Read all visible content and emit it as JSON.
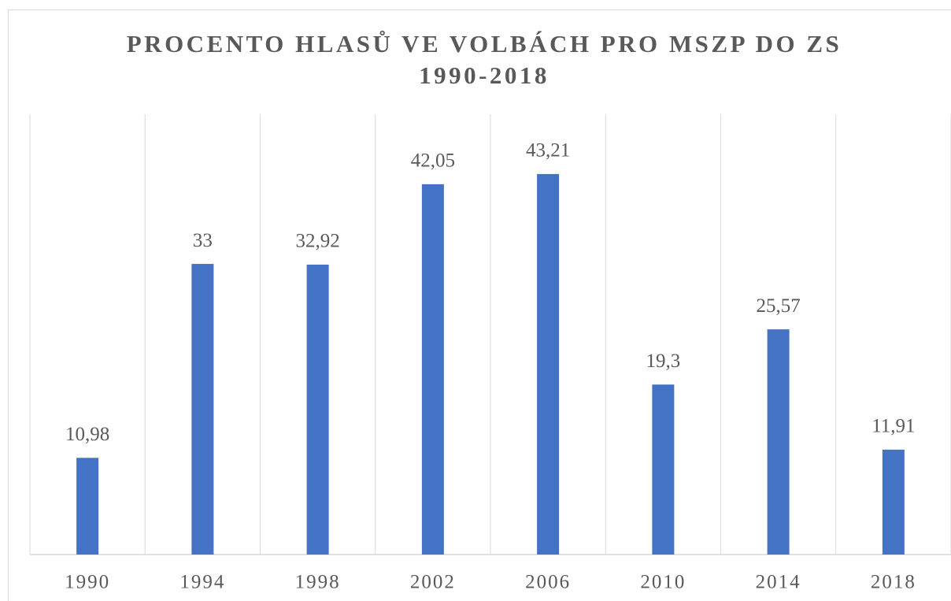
{
  "chart_data": {
    "type": "bar",
    "title": "PROCENTO HLASŮ VE VOLBÁCH PRO MSZP DO ZS 1990-2018",
    "categories": [
      "1990",
      "1994",
      "1998",
      "2002",
      "2006",
      "2010",
      "2014",
      "2018"
    ],
    "values": [
      10.98,
      33,
      32.92,
      42.05,
      43.21,
      19.3,
      25.57,
      11.91
    ],
    "value_labels": [
      "10,98",
      "33",
      "32,92",
      "42,05",
      "43,21",
      "19,3",
      "25,57",
      "11,91"
    ],
    "color": "#4472c4",
    "ylim": [
      0,
      50
    ]
  }
}
